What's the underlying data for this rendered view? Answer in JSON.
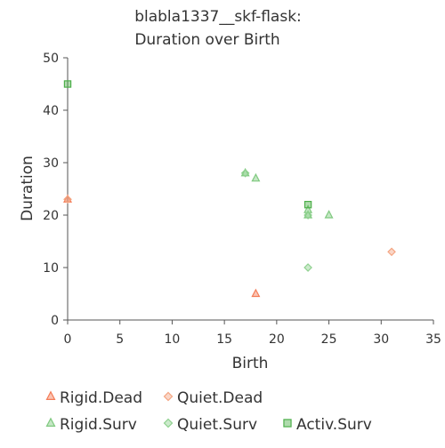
{
  "chart_data": {
    "type": "scatter",
    "title": [
      "blabla1337__skf-flask:",
      "Duration over Birth"
    ],
    "xlabel": "Birth",
    "ylabel": "Duration",
    "xlim": [
      0,
      35
    ],
    "ylim": [
      0,
      50
    ],
    "x_ticks": [
      0,
      5,
      10,
      15,
      20,
      25,
      30,
      35
    ],
    "y_ticks": [
      0,
      10,
      20,
      30,
      40,
      50
    ],
    "grid": false,
    "legend_position": "bottom",
    "series": [
      {
        "name": "Rigid.Dead",
        "marker": "triangle",
        "color": "#f47c57",
        "points": [
          [
            0,
            23
          ],
          [
            18,
            5
          ]
        ]
      },
      {
        "name": "Quiet.Dead",
        "marker": "diamond",
        "color": "#f4a582",
        "points": [
          [
            0,
            23
          ],
          [
            31,
            13
          ]
        ]
      },
      {
        "name": "Rigid.Surv",
        "marker": "triangle",
        "color": "#7fc97f",
        "points": [
          [
            17,
            28
          ],
          [
            18,
            27
          ],
          [
            23,
            20
          ],
          [
            23,
            21
          ],
          [
            25,
            20
          ]
        ]
      },
      {
        "name": "Quiet.Surv",
        "marker": "diamond",
        "color": "#8fd18f",
        "points": [
          [
            17,
            28
          ],
          [
            23,
            10
          ],
          [
            23,
            20
          ]
        ]
      },
      {
        "name": "Activ.Surv",
        "marker": "square",
        "color": "#4daf4a",
        "points": [
          [
            0,
            45
          ],
          [
            23,
            22
          ]
        ]
      }
    ]
  }
}
